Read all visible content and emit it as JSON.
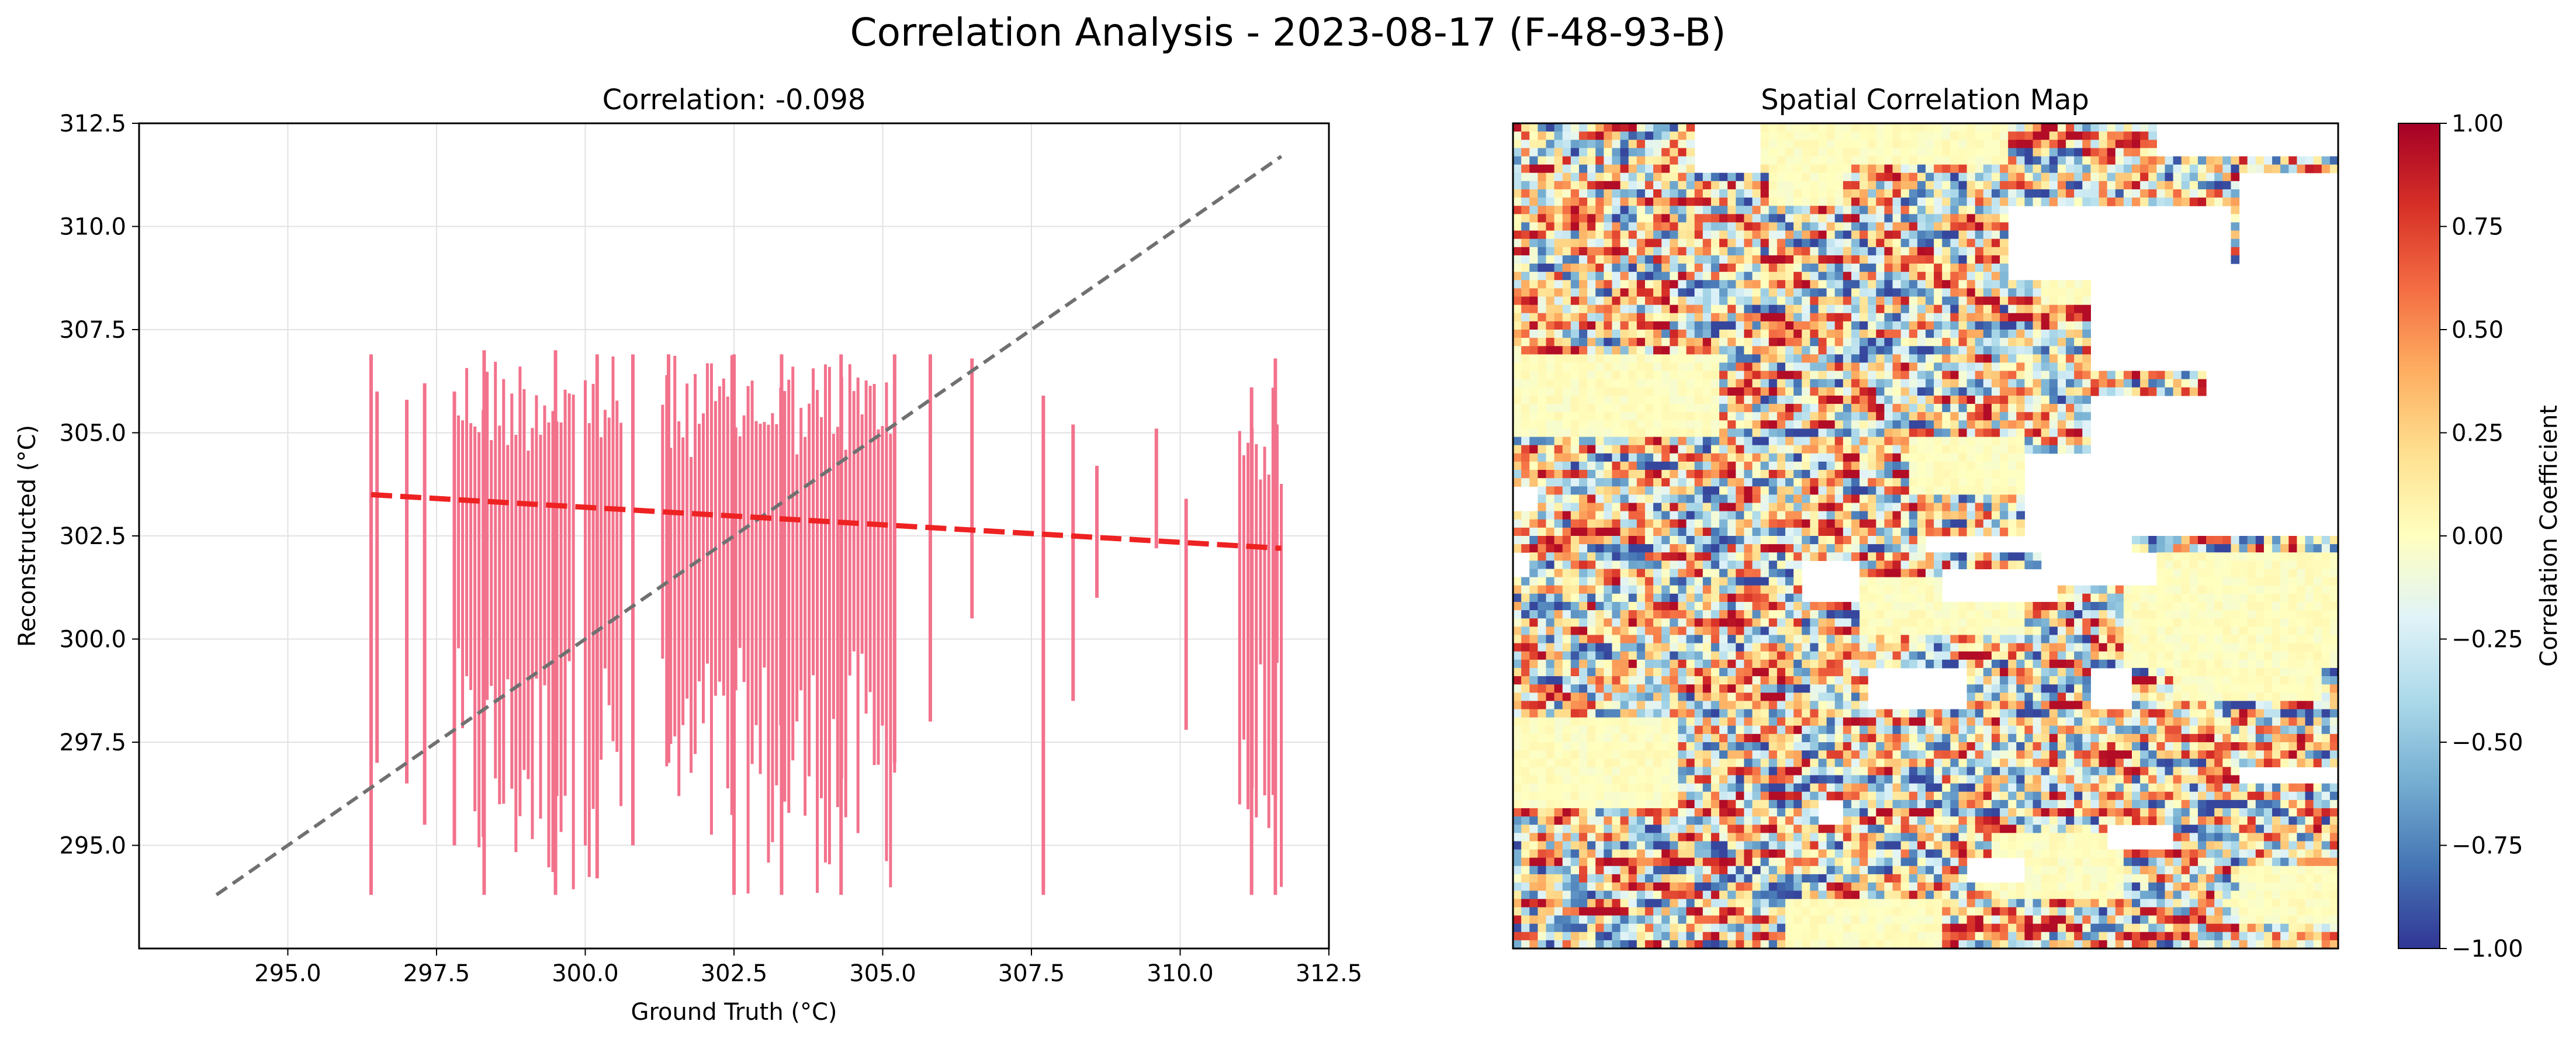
{
  "figure": {
    "suptitle": "Correlation Analysis - 2023-08-17 (F-48-93-B)"
  },
  "chart_data": [
    {
      "type": "scatter",
      "title": "Correlation: -0.098",
      "xlabel": "Ground Truth (°C)",
      "ylabel": "Reconstructed (°C)",
      "xlim": [
        292.5,
        312.5
      ],
      "ylim": [
        292.5,
        312.5
      ],
      "x_ticks": [
        "295.0",
        "297.5",
        "300.0",
        "302.5",
        "305.0",
        "307.5",
        "310.0",
        "312.5"
      ],
      "y_ticks": [
        "295.0",
        "297.5",
        "300.0",
        "302.5",
        "305.0",
        "307.5",
        "310.0",
        "312.5"
      ],
      "grid": true,
      "point_color": "#f2728c",
      "vertical_bands": [
        {
          "x": 296.4,
          "ymin": 293.8,
          "ymax": 306.9
        },
        {
          "x": 296.5,
          "ymin": 297.0,
          "ymax": 306.0
        },
        {
          "x": 297.0,
          "ymin": 296.5,
          "ymax": 305.8
        },
        {
          "x": 297.3,
          "ymin": 295.5,
          "ymax": 306.2
        },
        {
          "x": 297.8,
          "ymin": 295.0,
          "ymax": 306.0
        },
        {
          "x": 298.3,
          "ymin": 293.8,
          "ymax": 307.0
        },
        {
          "x": 299.5,
          "ymin": 293.8,
          "ymax": 307.0
        },
        {
          "x": 300.2,
          "ymin": 294.2,
          "ymax": 306.9
        },
        {
          "x": 300.8,
          "ymin": 295.0,
          "ymax": 306.9
        },
        {
          "x": 301.4,
          "ymin": 297.0,
          "ymax": 306.9
        },
        {
          "x": 302.5,
          "ymin": 293.8,
          "ymax": 306.9
        },
        {
          "x": 303.3,
          "ymin": 293.8,
          "ymax": 306.9
        },
        {
          "x": 304.3,
          "ymin": 293.8,
          "ymax": 306.9
        },
        {
          "x": 305.2,
          "ymin": 297.0,
          "ymax": 306.9
        },
        {
          "x": 305.8,
          "ymin": 298.0,
          "ymax": 306.9
        },
        {
          "x": 306.5,
          "ymin": 300.5,
          "ymax": 306.8
        },
        {
          "x": 307.7,
          "ymin": 293.8,
          "ymax": 305.9
        },
        {
          "x": 308.2,
          "ymin": 298.5,
          "ymax": 305.2
        },
        {
          "x": 308.6,
          "ymin": 301.0,
          "ymax": 304.2
        },
        {
          "x": 309.6,
          "ymin": 302.2,
          "ymax": 305.1
        },
        {
          "x": 310.1,
          "ymin": 297.8,
          "ymax": 303.4
        },
        {
          "x": 311.2,
          "ymin": 293.8,
          "ymax": 306.1
        },
        {
          "x": 311.6,
          "ymin": 293.8,
          "ymax": 306.8
        }
      ],
      "fit_line": {
        "x": [
          296.4,
          311.7
        ],
        "y": [
          303.5,
          302.2
        ],
        "color": "#ee2222",
        "style": "dashed"
      },
      "identity_line": {
        "x": [
          293.8,
          311.7
        ],
        "y": [
          293.8,
          311.7
        ],
        "color": "#707070",
        "style": "dashed"
      }
    },
    {
      "type": "heatmap",
      "title": "Spatial Correlation Map",
      "colorbar_label": "Correlation Coefficient",
      "colorbar_range": [
        -1.0,
        1.0
      ],
      "colorbar_ticks": [
        "−1.00",
        "−0.75",
        "−0.50",
        "−0.25",
        "0.00",
        "0.25",
        "0.50",
        "0.75",
        "1.00"
      ],
      "colormap": "RdYlBu_r",
      "colormap_stops": [
        "#313695",
        "#4575b4",
        "#74add1",
        "#abd9e9",
        "#e0f3f8",
        "#ffffbf",
        "#fee090",
        "#fdae61",
        "#f46d43",
        "#d73027",
        "#a50026"
      ]
    }
  ]
}
